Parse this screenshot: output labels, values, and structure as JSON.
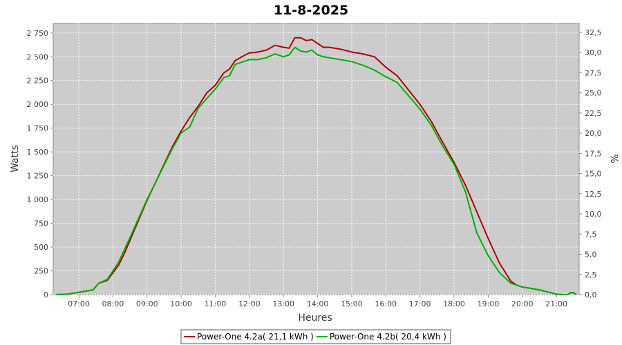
{
  "chart_data": {
    "type": "line",
    "title": "11-8-2025",
    "xlabel": "Heures",
    "ylabel": "Watts",
    "y2label": "%",
    "x_ticks": [
      "07:00",
      "08:00",
      "09:00",
      "10:00",
      "11:00",
      "12:00",
      "13:00",
      "14:00",
      "15:00",
      "16:00",
      "17:00",
      "18:00",
      "19:00",
      "20:00",
      "21:00"
    ],
    "x_range": [
      "06:15",
      "21:40"
    ],
    "ylim": [
      0,
      2850
    ],
    "y_ticks": [
      "0",
      "250",
      "500",
      "750",
      "1 000",
      "1 250",
      "1 500",
      "1 750",
      "2 000",
      "2 250",
      "2 500",
      "2 750"
    ],
    "y2lim": [
      0,
      33.6
    ],
    "y2_ticks": [
      "0,0",
      "2,5",
      "5,0",
      "7,5",
      "10,0",
      "12,5",
      "15,0",
      "17,5",
      "20,0",
      "22,5",
      "25,0",
      "27,5",
      "30,0",
      "32,5"
    ],
    "grid": true,
    "legend_position": "bottom",
    "background_color": "#cccccc",
    "series": [
      {
        "name": "Power-One 4.2a( 21,1 kWh )",
        "color": "#b00000",
        "x": [
          "06:20",
          "06:40",
          "07:00",
          "07:15",
          "07:25",
          "07:35",
          "07:50",
          "08:00",
          "08:10",
          "08:20",
          "08:30",
          "08:45",
          "09:00",
          "09:15",
          "09:30",
          "09:45",
          "10:00",
          "10:15",
          "10:30",
          "10:45",
          "11:00",
          "11:15",
          "11:25",
          "11:35",
          "11:50",
          "12:00",
          "12:15",
          "12:30",
          "12:45",
          "13:00",
          "13:10",
          "13:20",
          "13:30",
          "13:40",
          "13:50",
          "14:00",
          "14:10",
          "14:20",
          "14:30",
          "14:40",
          "15:00",
          "15:20",
          "15:40",
          "16:00",
          "16:20",
          "16:40",
          "17:00",
          "17:20",
          "17:40",
          "18:00",
          "18:20",
          "18:40",
          "19:00",
          "19:20",
          "19:40",
          "19:50",
          "20:00",
          "20:10",
          "20:20",
          "20:30",
          "20:40",
          "20:50",
          "21:00",
          "21:10",
          "21:20",
          "21:25",
          "21:30",
          "21:35"
        ],
        "values": [
          0,
          5,
          25,
          40,
          50,
          120,
          150,
          230,
          310,
          430,
          570,
          780,
          990,
          1180,
          1370,
          1560,
          1720,
          1860,
          1980,
          2120,
          2200,
          2330,
          2370,
          2460,
          2510,
          2540,
          2550,
          2570,
          2620,
          2600,
          2590,
          2700,
          2700,
          2670,
          2680,
          2640,
          2600,
          2600,
          2590,
          2580,
          2550,
          2530,
          2500,
          2390,
          2300,
          2150,
          2000,
          1820,
          1600,
          1390,
          1150,
          870,
          590,
          330,
          140,
          100,
          80,
          70,
          60,
          50,
          35,
          20,
          5,
          0,
          0,
          20,
          20,
          0
        ]
      },
      {
        "name": "Power-One 4.2b( 20,4 kWh )",
        "color": "#00b000",
        "x": [
          "06:20",
          "06:40",
          "07:00",
          "07:15",
          "07:25",
          "07:35",
          "07:50",
          "08:00",
          "08:10",
          "08:20",
          "08:30",
          "08:45",
          "09:00",
          "09:15",
          "09:30",
          "09:45",
          "10:00",
          "10:15",
          "10:30",
          "10:45",
          "11:00",
          "11:15",
          "11:25",
          "11:35",
          "11:50",
          "12:00",
          "12:15",
          "12:30",
          "12:45",
          "13:00",
          "13:10",
          "13:20",
          "13:30",
          "13:40",
          "13:50",
          "14:00",
          "14:10",
          "14:20",
          "14:30",
          "14:40",
          "15:00",
          "15:20",
          "15:40",
          "16:00",
          "16:20",
          "16:40",
          "17:00",
          "17:20",
          "17:40",
          "18:00",
          "18:20",
          "18:40",
          "19:00",
          "19:20",
          "19:40",
          "19:50",
          "20:00",
          "20:10",
          "20:20",
          "20:30",
          "20:40",
          "20:50",
          "21:00",
          "21:10",
          "21:20",
          "21:25",
          "21:30",
          "21:35"
        ],
        "values": [
          0,
          5,
          25,
          40,
          50,
          120,
          160,
          250,
          340,
          470,
          600,
          800,
          1000,
          1180,
          1360,
          1540,
          1700,
          1760,
          1960,
          2060,
          2160,
          2280,
          2300,
          2420,
          2450,
          2470,
          2470,
          2490,
          2530,
          2500,
          2520,
          2600,
          2560,
          2550,
          2570,
          2520,
          2500,
          2490,
          2480,
          2470,
          2450,
          2410,
          2360,
          2290,
          2230,
          2090,
          1950,
          1780,
          1560,
          1370,
          1080,
          650,
          410,
          230,
          120,
          100,
          80,
          70,
          60,
          50,
          35,
          20,
          5,
          0,
          0,
          20,
          20,
          0
        ]
      }
    ]
  }
}
